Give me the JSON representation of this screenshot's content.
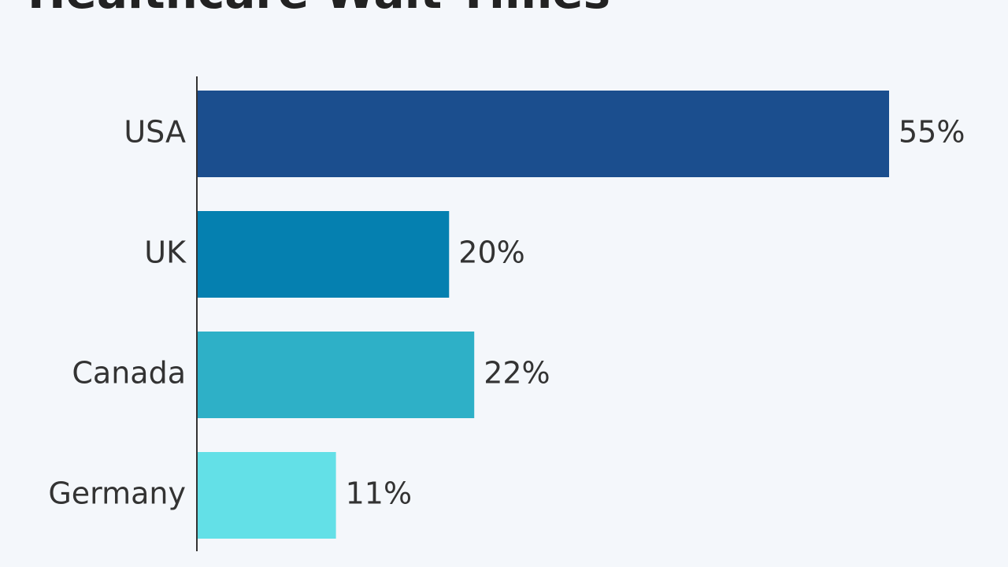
{
  "chart_data": {
    "type": "hbar",
    "title": "Healthcare Wait Times",
    "categories": [
      "USA",
      "UK",
      "Canada",
      "Germany"
    ],
    "values": [
      55,
      20,
      22,
      11
    ],
    "value_labels": [
      "55%",
      "20%",
      "22%",
      "11%"
    ],
    "colors": [
      "#1b4e8e",
      "#0580b0",
      "#2eb0c7",
      "#63e0e7"
    ]
  }
}
